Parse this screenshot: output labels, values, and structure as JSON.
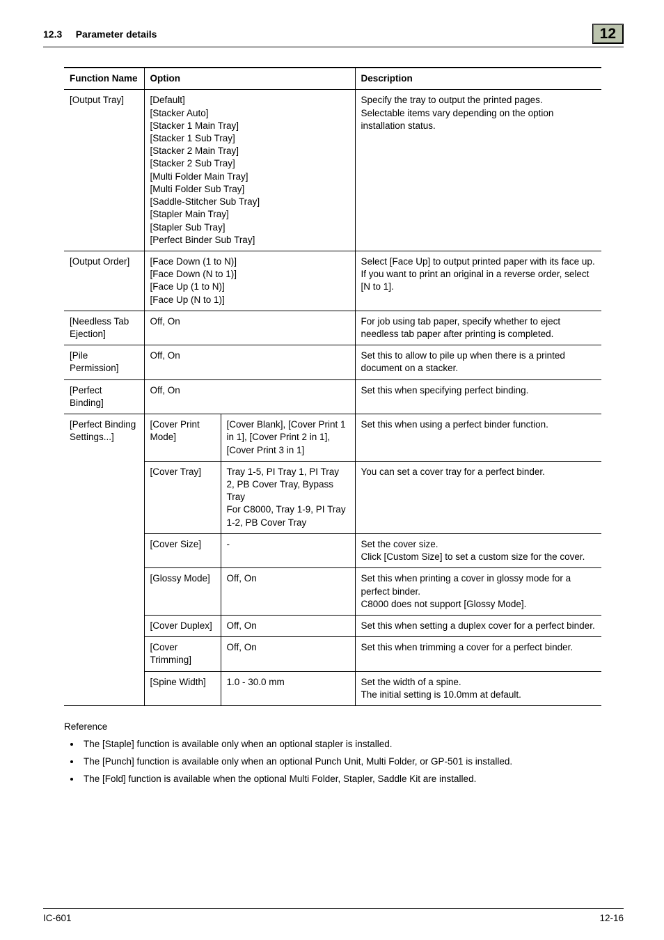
{
  "header": {
    "section_number": "12.3",
    "section_title": "Parameter details",
    "chapter_number": "12"
  },
  "table": {
    "head": {
      "fn": "Function Name",
      "opt": "Option",
      "desc": "Description"
    },
    "rows": [
      {
        "fn": "[Output Tray]",
        "opt_colspan": 2,
        "opt": "[Default]\n[Stacker Auto]\n[Stacker 1 Main Tray]\n[Stacker 1 Sub Tray]\n[Stacker 2 Main Tray]\n[Stacker 2 Sub Tray]\n[Multi Folder Main Tray]\n[Multi Folder Sub Tray]\n[Saddle-Stitcher Sub Tray]\n[Stapler Main Tray]\n[Stapler Sub Tray]\n[Perfect Binder Sub Tray]",
        "desc": "Specify the tray to output the printed pages.\nSelectable items vary depending on the option installation status."
      },
      {
        "fn": "[Output Order]",
        "opt_colspan": 2,
        "opt": "[Face Down (1 to N)]\n[Face Down (N to 1)]\n[Face Up (1 to N)]\n[Face Up (N to 1)]",
        "desc": "Select [Face Up] to output printed paper with its face up.\nIf you want to print an original in a reverse order, select [N to 1]."
      },
      {
        "fn": "[Needless Tab Ejection]",
        "opt_colspan": 2,
        "opt": "Off, On",
        "desc": "For job using tab paper, specify whether to eject needless tab paper after printing is completed."
      },
      {
        "fn": "[Pile Permission]",
        "opt_colspan": 2,
        "opt": "Off, On",
        "desc": "Set this to allow to pile up when there is a printed document on a stacker."
      },
      {
        "fn": "[Perfect Binding]",
        "opt_colspan": 2,
        "opt": "Off, On",
        "desc": "Set this when specifying perfect binding."
      },
      {
        "fn": "[Perfect Binding Settings...]",
        "fn_rowspan": 7,
        "opt1": "[Cover Print Mode]",
        "opt2": "[Cover Blank], [Cover Print 1 in 1], [Cover Print 2 in 1], [Cover Print 3 in 1]",
        "desc": "Set this when using a perfect binder function."
      },
      {
        "opt1": "[Cover Tray]",
        "opt2": "Tray 1-5, PI Tray 1, PI Tray 2, PB Cover Tray, Bypass Tray\nFor C8000, Tray 1-9, PI Tray 1-2, PB Cover Tray",
        "desc": "You can set a cover tray for a perfect binder."
      },
      {
        "opt1": "[Cover Size]",
        "opt2": "-",
        "desc": "Set the cover size.\nClick [Custom Size] to set a custom size for the cover."
      },
      {
        "opt1": "[Glossy Mode]",
        "opt2": "Off, On",
        "desc": "Set this when printing a cover in glossy mode for a perfect binder.\nC8000 does not support [Glossy Mode]."
      },
      {
        "opt1": "[Cover Duplex]",
        "opt2": "Off, On",
        "desc": "Set this when setting a duplex cover for a perfect binder."
      },
      {
        "opt1": "[Cover Trimming]",
        "opt2": "Off, On",
        "desc": "Set this when trimming a cover for a perfect binder."
      },
      {
        "opt1": "[Spine Width]",
        "opt2": "1.0 - 30.0 mm",
        "desc": "Set the width of a spine.\nThe initial setting is 10.0mm at default."
      }
    ]
  },
  "reference": {
    "heading": "Reference",
    "items": [
      "The [Staple] function is available only when an optional stapler is installed.",
      "The [Punch] function is available only when an optional Punch Unit, Multi Folder, or GP-501 is installed.",
      "The [Fold] function is available when the optional Multi Folder, Stapler, Saddle Kit are installed."
    ]
  },
  "footer": {
    "left": "IC-601",
    "right": "12-16"
  }
}
